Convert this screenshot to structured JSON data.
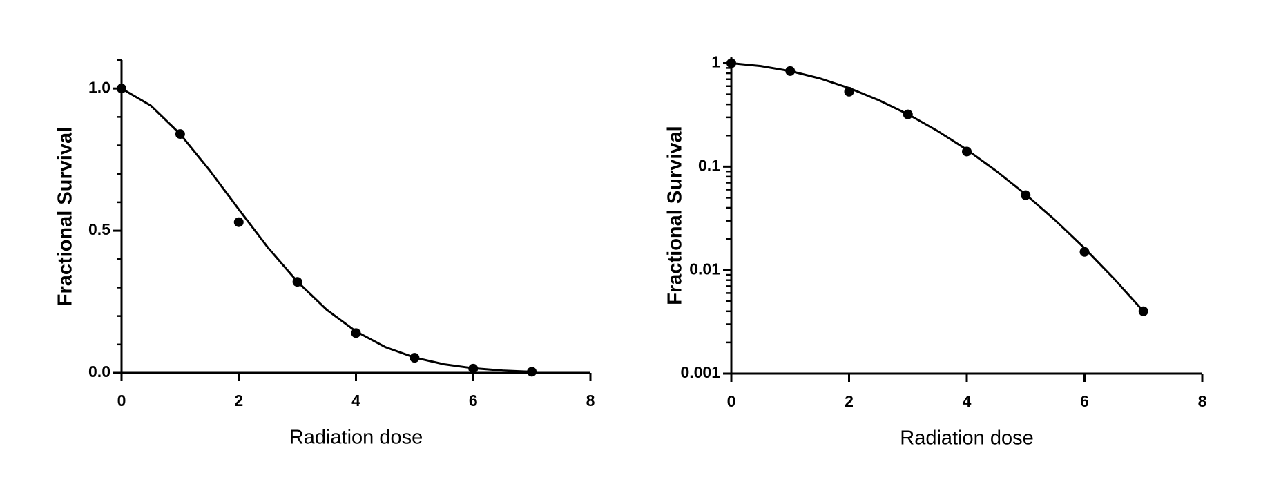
{
  "chart_data": [
    {
      "type": "scatter",
      "xlabel": "Radiation dose",
      "ylabel": "Fractional Survival",
      "xlim": [
        0,
        8
      ],
      "xticks": [
        0,
        2,
        4,
        6,
        8
      ],
      "ylim": [
        0,
        1.1
      ],
      "yticks": [
        {
          "value": 0,
          "label": "0.0"
        },
        {
          "value": 0.5,
          "label": "0.5"
        },
        {
          "value": 1,
          "label": "1.0"
        }
      ],
      "yminor": [
        0.1,
        0.2,
        0.3,
        0.4,
        0.6,
        0.7,
        0.8,
        0.9,
        1.1
      ],
      "yscale": "linear",
      "series": [
        {
          "mode": "markers",
          "color": "#000000",
          "x": [
            0,
            1,
            2,
            3,
            4,
            5,
            6,
            7
          ],
          "values": [
            1.0,
            0.84,
            0.53,
            0.32,
            0.14,
            0.053,
            0.015,
            0.004
          ]
        },
        {
          "mode": "line",
          "color": "#000000",
          "x": [
            0,
            0.5,
            1,
            1.5,
            2,
            2.5,
            3,
            3.5,
            4,
            4.5,
            5,
            5.5,
            6,
            6.5,
            7
          ],
          "values": [
            1,
            0.94,
            0.84,
            0.713,
            0.575,
            0.44,
            0.321,
            0.222,
            0.146,
            0.0909,
            0.0539,
            0.0304,
            0.0163,
            0.00828,
            0.004
          ]
        }
      ]
    },
    {
      "type": "scatter",
      "xlabel": "Radiation dose",
      "ylabel": "Fractional Survival",
      "xlim": [
        0,
        8
      ],
      "xticks": [
        0,
        2,
        4,
        6,
        8
      ],
      "ylim": [
        0.001,
        1.14
      ],
      "yticks": [
        0.001,
        0.01,
        0.1,
        1
      ],
      "yminor": [
        0.002,
        0.003,
        0.004,
        0.005,
        0.006,
        0.007,
        0.008,
        0.009,
        0.02,
        0.03,
        0.04,
        0.05,
        0.06,
        0.07,
        0.08,
        0.09,
        0.2,
        0.3,
        0.4,
        0.5,
        0.6,
        0.7,
        0.8,
        0.9
      ],
      "yscale": "log",
      "series": [
        {
          "mode": "markers",
          "color": "#000000",
          "x": [
            0,
            1,
            2,
            3,
            4,
            5,
            6,
            7
          ],
          "values": [
            1.0,
            0.84,
            0.53,
            0.32,
            0.14,
            0.053,
            0.015,
            0.004
          ]
        },
        {
          "mode": "line",
          "color": "#000000",
          "x": [
            0,
            0.5,
            1,
            1.5,
            2,
            2.5,
            3,
            3.5,
            4,
            4.5,
            5,
            5.5,
            6,
            6.5,
            7
          ],
          "values": [
            1,
            0.94,
            0.84,
            0.713,
            0.575,
            0.44,
            0.321,
            0.222,
            0.146,
            0.0909,
            0.0539,
            0.0304,
            0.0163,
            0.00828,
            0.004
          ]
        }
      ]
    }
  ]
}
